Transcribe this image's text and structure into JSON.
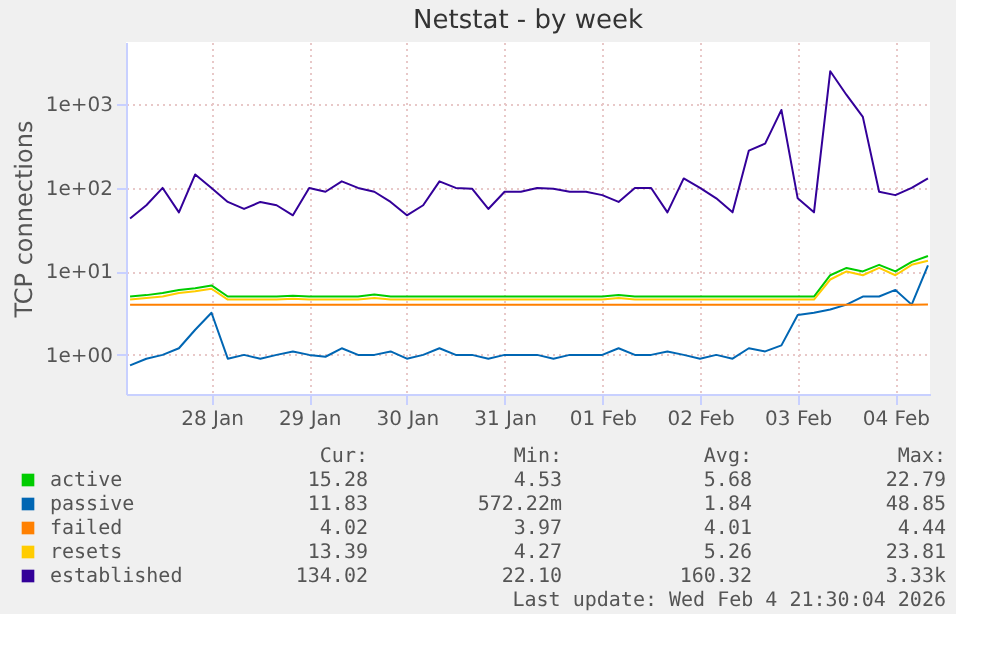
{
  "chart_data": {
    "type": "line",
    "title": "Netstat - by week",
    "ylabel": "TCP connections",
    "x": [
      "2026-01-27T16:00",
      "2026-01-27T20:00",
      "2026-01-28T00:00",
      "2026-01-28T04:00",
      "2026-01-28T08:00",
      "2026-01-28T12:00",
      "2026-01-28T16:00",
      "2026-01-28T20:00",
      "2026-01-29T00:00",
      "2026-01-29T04:00",
      "2026-01-29T08:00",
      "2026-01-29T12:00",
      "2026-01-29T16:00",
      "2026-01-29T20:00",
      "2026-01-30T00:00",
      "2026-01-30T04:00",
      "2026-01-30T08:00",
      "2026-01-30T12:00",
      "2026-01-30T16:00",
      "2026-01-30T20:00",
      "2026-01-31T00:00",
      "2026-01-31T04:00",
      "2026-01-31T08:00",
      "2026-01-31T12:00",
      "2026-01-31T16:00",
      "2026-01-31T20:00",
      "2026-02-01T00:00",
      "2026-02-01T04:00",
      "2026-02-01T08:00",
      "2026-02-01T12:00",
      "2026-02-01T16:00",
      "2026-02-01T20:00",
      "2026-02-02T00:00",
      "2026-02-02T04:00",
      "2026-02-02T08:00",
      "2026-02-02T12:00",
      "2026-02-02T16:00",
      "2026-02-02T20:00",
      "2026-02-03T00:00",
      "2026-02-03T04:00",
      "2026-02-03T08:00",
      "2026-02-03T12:00",
      "2026-02-03T16:00",
      "2026-02-03T20:00",
      "2026-02-04T00:00",
      "2026-02-04T04:00",
      "2026-02-04T08:00",
      "2026-02-04T12:00",
      "2026-02-04T16:00",
      "2026-02-04T20:00"
    ],
    "series": [
      {
        "name": "active",
        "color": "#00cc00",
        "values": [
          5,
          5.2,
          5.5,
          6,
          6.3,
          6.8,
          5,
          5,
          5,
          5,
          5.1,
          5,
          5,
          5,
          5,
          5.3,
          5,
          5,
          5,
          5,
          5,
          5,
          5,
          5,
          5,
          5,
          5,
          5,
          5,
          5,
          5.2,
          5,
          5,
          5,
          5,
          5,
          5,
          5,
          5,
          5,
          5,
          5,
          5,
          9,
          11,
          10,
          12,
          10,
          13,
          15.3
        ]
      },
      {
        "name": "passive",
        "color": "#0066b3",
        "values": [
          0.75,
          0.9,
          1,
          1.2,
          2,
          3.2,
          0.9,
          1,
          0.9,
          1,
          1.1,
          1,
          0.95,
          1.2,
          1,
          1,
          1.1,
          0.9,
          1,
          1.2,
          1,
          1,
          0.9,
          1,
          1,
          1,
          0.9,
          1,
          1,
          1,
          1.2,
          1,
          1,
          1.1,
          1,
          0.9,
          1,
          0.9,
          1.2,
          1.1,
          1.3,
          3,
          3.2,
          3.5,
          4,
          5,
          5,
          6,
          4,
          11.8
        ]
      },
      {
        "name": "failed",
        "color": "#ff8000",
        "values": [
          4,
          4,
          4,
          4,
          4,
          4,
          4,
          4,
          4,
          4,
          4,
          4,
          4,
          4,
          4,
          4,
          4,
          4,
          4,
          4,
          4,
          4,
          4,
          4,
          4,
          4,
          4,
          4,
          4,
          4,
          4,
          4,
          4,
          4,
          4,
          4,
          4,
          4,
          4,
          4,
          4,
          4,
          4,
          4,
          4,
          4,
          4,
          4,
          4,
          4.02
        ]
      },
      {
        "name": "resets",
        "color": "#ffcc00",
        "values": [
          4.6,
          4.8,
          5,
          5.5,
          5.8,
          6.2,
          4.6,
          4.6,
          4.6,
          4.6,
          4.7,
          4.6,
          4.6,
          4.6,
          4.6,
          4.8,
          4.6,
          4.6,
          4.6,
          4.6,
          4.6,
          4.6,
          4.6,
          4.6,
          4.6,
          4.6,
          4.6,
          4.6,
          4.6,
          4.6,
          4.8,
          4.6,
          4.6,
          4.6,
          4.6,
          4.6,
          4.6,
          4.6,
          4.6,
          4.6,
          4.6,
          4.6,
          4.6,
          8,
          10,
          9,
          11,
          9,
          12,
          13.4
        ]
      },
      {
        "name": "established",
        "color": "#330099",
        "values": [
          43,
          62,
          100,
          51,
          145,
          100,
          68,
          56,
          68,
          62,
          47,
          100,
          90,
          120,
          100,
          90,
          68,
          47,
          62,
          120,
          100,
          98,
          56,
          90,
          90,
          100,
          98,
          90,
          90,
          82,
          68,
          100,
          100,
          51,
          130,
          100,
          75,
          51,
          280,
          340,
          860,
          75,
          51,
          2500,
          1300,
          710,
          90,
          82,
          100,
          130
        ]
      }
    ],
    "xlim": [
      "2026-01-27T15:00",
      "2026-02-04T20:30"
    ],
    "xticks": [
      {
        "value": "2026-01-28T12:00",
        "label": "28 Jan"
      },
      {
        "value": "2026-01-29T12:00",
        "label": "29 Jan"
      },
      {
        "value": "2026-01-30T12:00",
        "label": "30 Jan"
      },
      {
        "value": "2026-01-31T12:00",
        "label": "31 Jan"
      },
      {
        "value": "2026-02-01T12:00",
        "label": "01 Feb"
      },
      {
        "value": "2026-02-02T12:00",
        "label": "02 Feb"
      },
      {
        "value": "2026-02-03T12:00",
        "label": "03 Feb"
      },
      {
        "value": "2026-02-04T12:00",
        "label": "04 Feb"
      }
    ],
    "ylim": [
      0.34,
      5600
    ],
    "yticks": [
      {
        "value": 1,
        "label": "1e+00"
      },
      {
        "value": 10,
        "label": "1e+01"
      },
      {
        "value": 100,
        "label": "1e+02"
      },
      {
        "value": 1000,
        "label": "1e+03"
      }
    ],
    "log": true,
    "grid": true,
    "legend": "bottom",
    "annotations": [
      "Cur:",
      "Min:",
      "Avg:",
      "Max:",
      "15.28",
      "4.53",
      "5.68",
      "22.79",
      "11.83",
      "572.22m",
      "1.84",
      "48.85",
      "4.02",
      "3.97",
      "4.01",
      "4.44",
      "13.39",
      "4.27",
      "5.26",
      "23.81",
      "134.02",
      "22.10",
      "160.32",
      "3.33k",
      "Last update: Wed Feb  4 21:30:04 2026"
    ]
  }
}
